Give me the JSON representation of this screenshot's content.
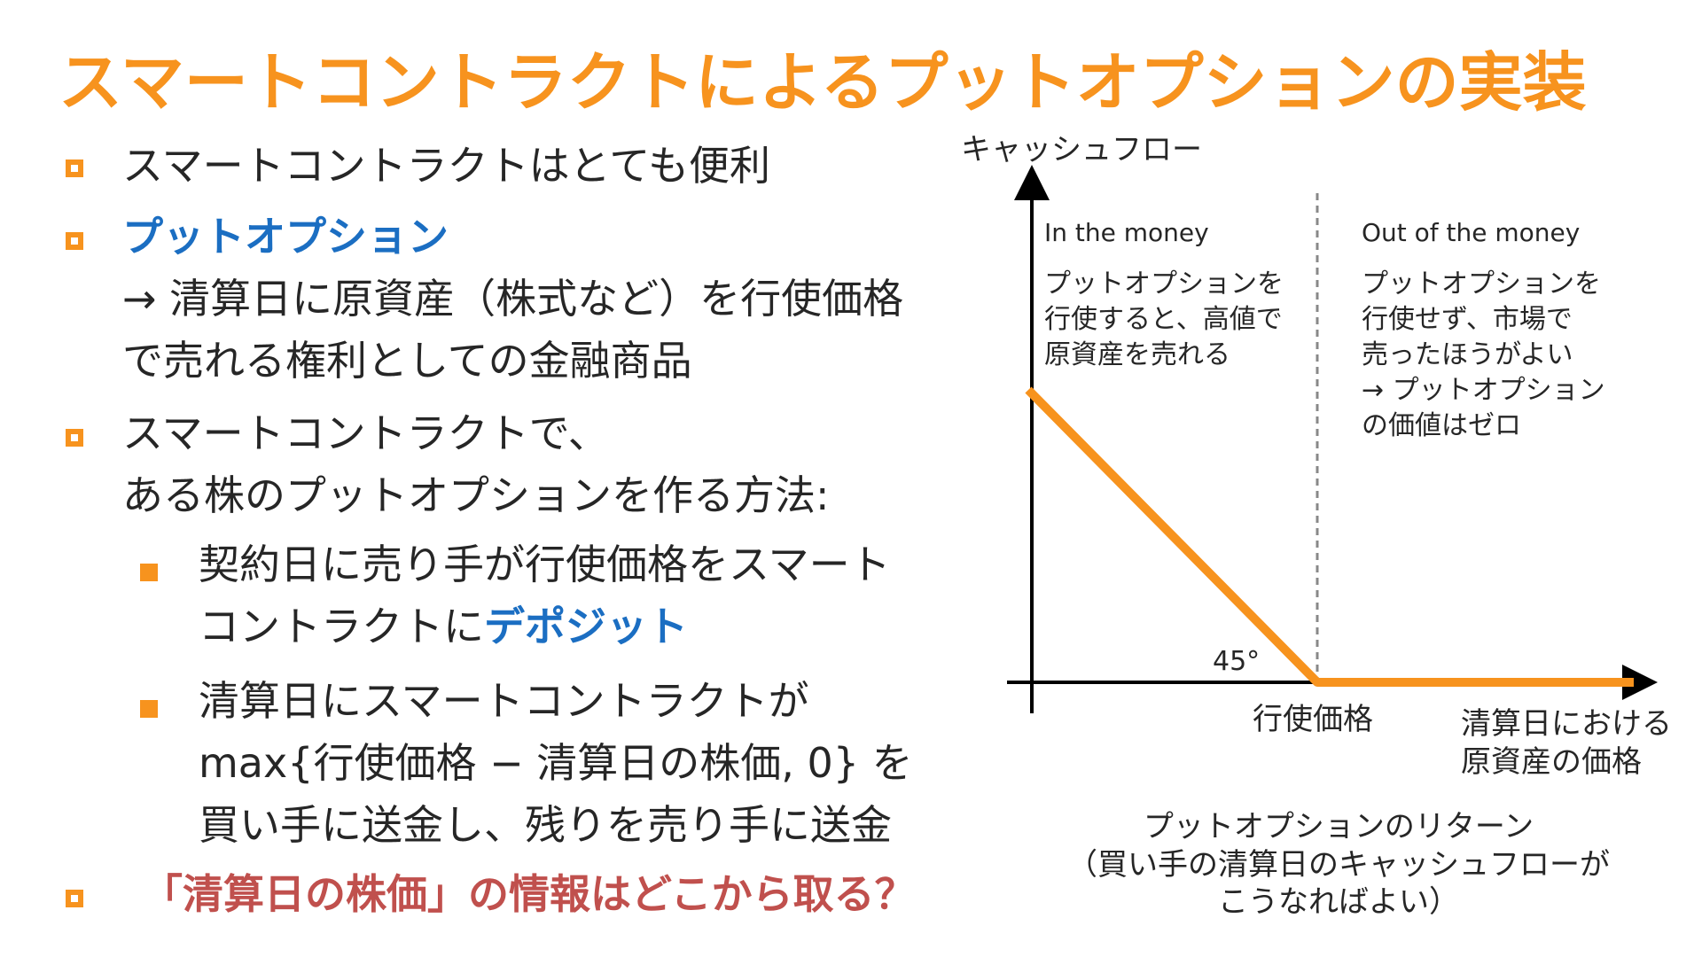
{
  "title": "スマートコントラクトによるプットオプションの実装",
  "bullets": {
    "b1": "スマートコントラクトはとても便利",
    "b2_title": "プットオプション",
    "b2_line1": "→ 清算日に原資産（株式など）を行使価格",
    "b2_line2": "で売れる権利としての金融商品",
    "b3_line1": "スマートコントラクトで、",
    "b3_line2": "ある株のプットオプションを作る方法:",
    "s1_line1": "契約日に売り手が行使価格をスマート",
    "s1_line2_plain": "コントラクトに",
    "s1_line2_emph": "デポジット",
    "s2_line1": "清算日にスマートコントラクトが",
    "s2_line2": "max{行使価格 − 清算日の株価, 0} を",
    "s2_line3": "買い手に送金し、残りを売り手に送金",
    "b4": "「清算日の株価」の情報はどこから取る？"
  },
  "diagram": {
    "y_axis_label": "キャッシュフロー",
    "left_region": {
      "heading": "In the money",
      "lines": [
        "プットオプションを",
        "行使すると、高値で",
        "原資産を売れる"
      ]
    },
    "right_region": {
      "heading": "Out of the money",
      "lines": [
        "プットオプションを",
        "行使せず、市場で",
        "売ったほうがよい",
        "→ プットオプション",
        "の価値はゼロ"
      ]
    },
    "angle_label": "45°",
    "strike_label": "行使価格",
    "x_axis_label_line1": "清算日における",
    "x_axis_label_line2": "原資産の価格",
    "caption_line1": "プットオプションのリターン",
    "caption_line2": "（買い手の清算日のキャッシュフローが",
    "caption_line3": "こうなればよい）",
    "colors": {
      "payoff": "#f7931e",
      "axis": "#000000",
      "divider": "#888888"
    }
  }
}
